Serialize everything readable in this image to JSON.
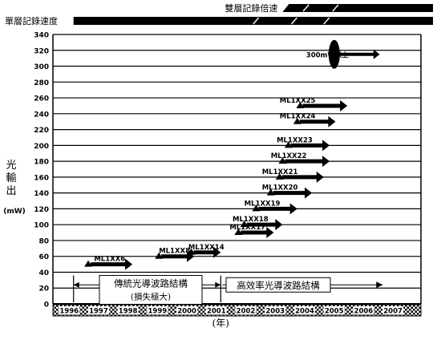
{
  "chart_data": {
    "type": "timeline",
    "speed_bars": {
      "single": {
        "label": "單層記錄速度",
        "start": 1996.2,
        "stripes": [
          2002.3,
          2003.6,
          2004.7
        ]
      },
      "dual": {
        "label": "雙層記錄倍速",
        "start": 2003.3,
        "stripes": [
          2004.0,
          2005.0
        ]
      }
    },
    "ylabel": "光輸出",
    "yunit": "(mW)",
    "xlabel": "(年)",
    "ylim": [
      0,
      340
    ],
    "xlim": [
      1995.5,
      2008.0
    ],
    "y_ticks": [
      0,
      20,
      40,
      60,
      80,
      100,
      120,
      140,
      160,
      180,
      200,
      220,
      240,
      260,
      280,
      300,
      320,
      340
    ],
    "x_ticks": [
      "1996",
      "1997",
      "1998",
      "1999",
      "2000",
      "2001",
      "2002",
      "2003",
      "2004",
      "2005",
      "2006",
      "2007"
    ],
    "series": [
      {
        "name": "ML1XX6",
        "start": 1996.7,
        "end": 1998.2,
        "value": 50,
        "label_year": 1996.9
      },
      {
        "name": "ML1XX8",
        "start": 1999.1,
        "end": 2000.3,
        "value": 60,
        "label_year": 1999.1
      },
      {
        "name": "ML1XX14",
        "start": 2000.2,
        "end": 2001.2,
        "value": 65,
        "label_year": 2000.1
      },
      {
        "name": "ML1XX17",
        "start": 2001.8,
        "end": 2003.0,
        "value": 90,
        "label_year": 2001.5
      },
      {
        "name": "ML1XX18",
        "start": 2002.0,
        "end": 2003.3,
        "value": 100,
        "label_year": 2001.6
      },
      {
        "name": "ML1XX19",
        "start": 2002.4,
        "end": 2003.8,
        "value": 120,
        "label_year": 2002.0
      },
      {
        "name": "ML1XX20",
        "start": 2002.9,
        "end": 2004.3,
        "value": 140,
        "label_year": 2002.6
      },
      {
        "name": "ML1XX21",
        "start": 2003.2,
        "end": 2004.7,
        "value": 160,
        "label_year": 2002.6
      },
      {
        "name": "ML1XX22",
        "start": 2003.3,
        "end": 2004.9,
        "value": 180,
        "label_year": 2002.9
      },
      {
        "name": "ML1XX23",
        "start": 2003.5,
        "end": 2004.9,
        "value": 200,
        "label_year": 2003.1
      },
      {
        "name": "ML1XX24",
        "start": 2003.8,
        "end": 2005.1,
        "value": 230,
        "label_year": 2003.2
      },
      {
        "name": "ML1XX25",
        "start": 2003.9,
        "end": 2005.5,
        "value": 250,
        "label_year": 2003.2
      },
      {
        "name": "300mW以上",
        "start": 2005.0,
        "end": 2006.6,
        "value": 315,
        "label_year": 2004.1
      }
    ],
    "structure_periods": [
      {
        "label": "傳統光導波路結構",
        "sublabel": "(損失極大)",
        "start": 1996.2,
        "end": 2001.2
      },
      {
        "label": "高效率光導波路結構",
        "sublabel": "",
        "start": 2001.2,
        "end": 2006.7
      }
    ]
  }
}
